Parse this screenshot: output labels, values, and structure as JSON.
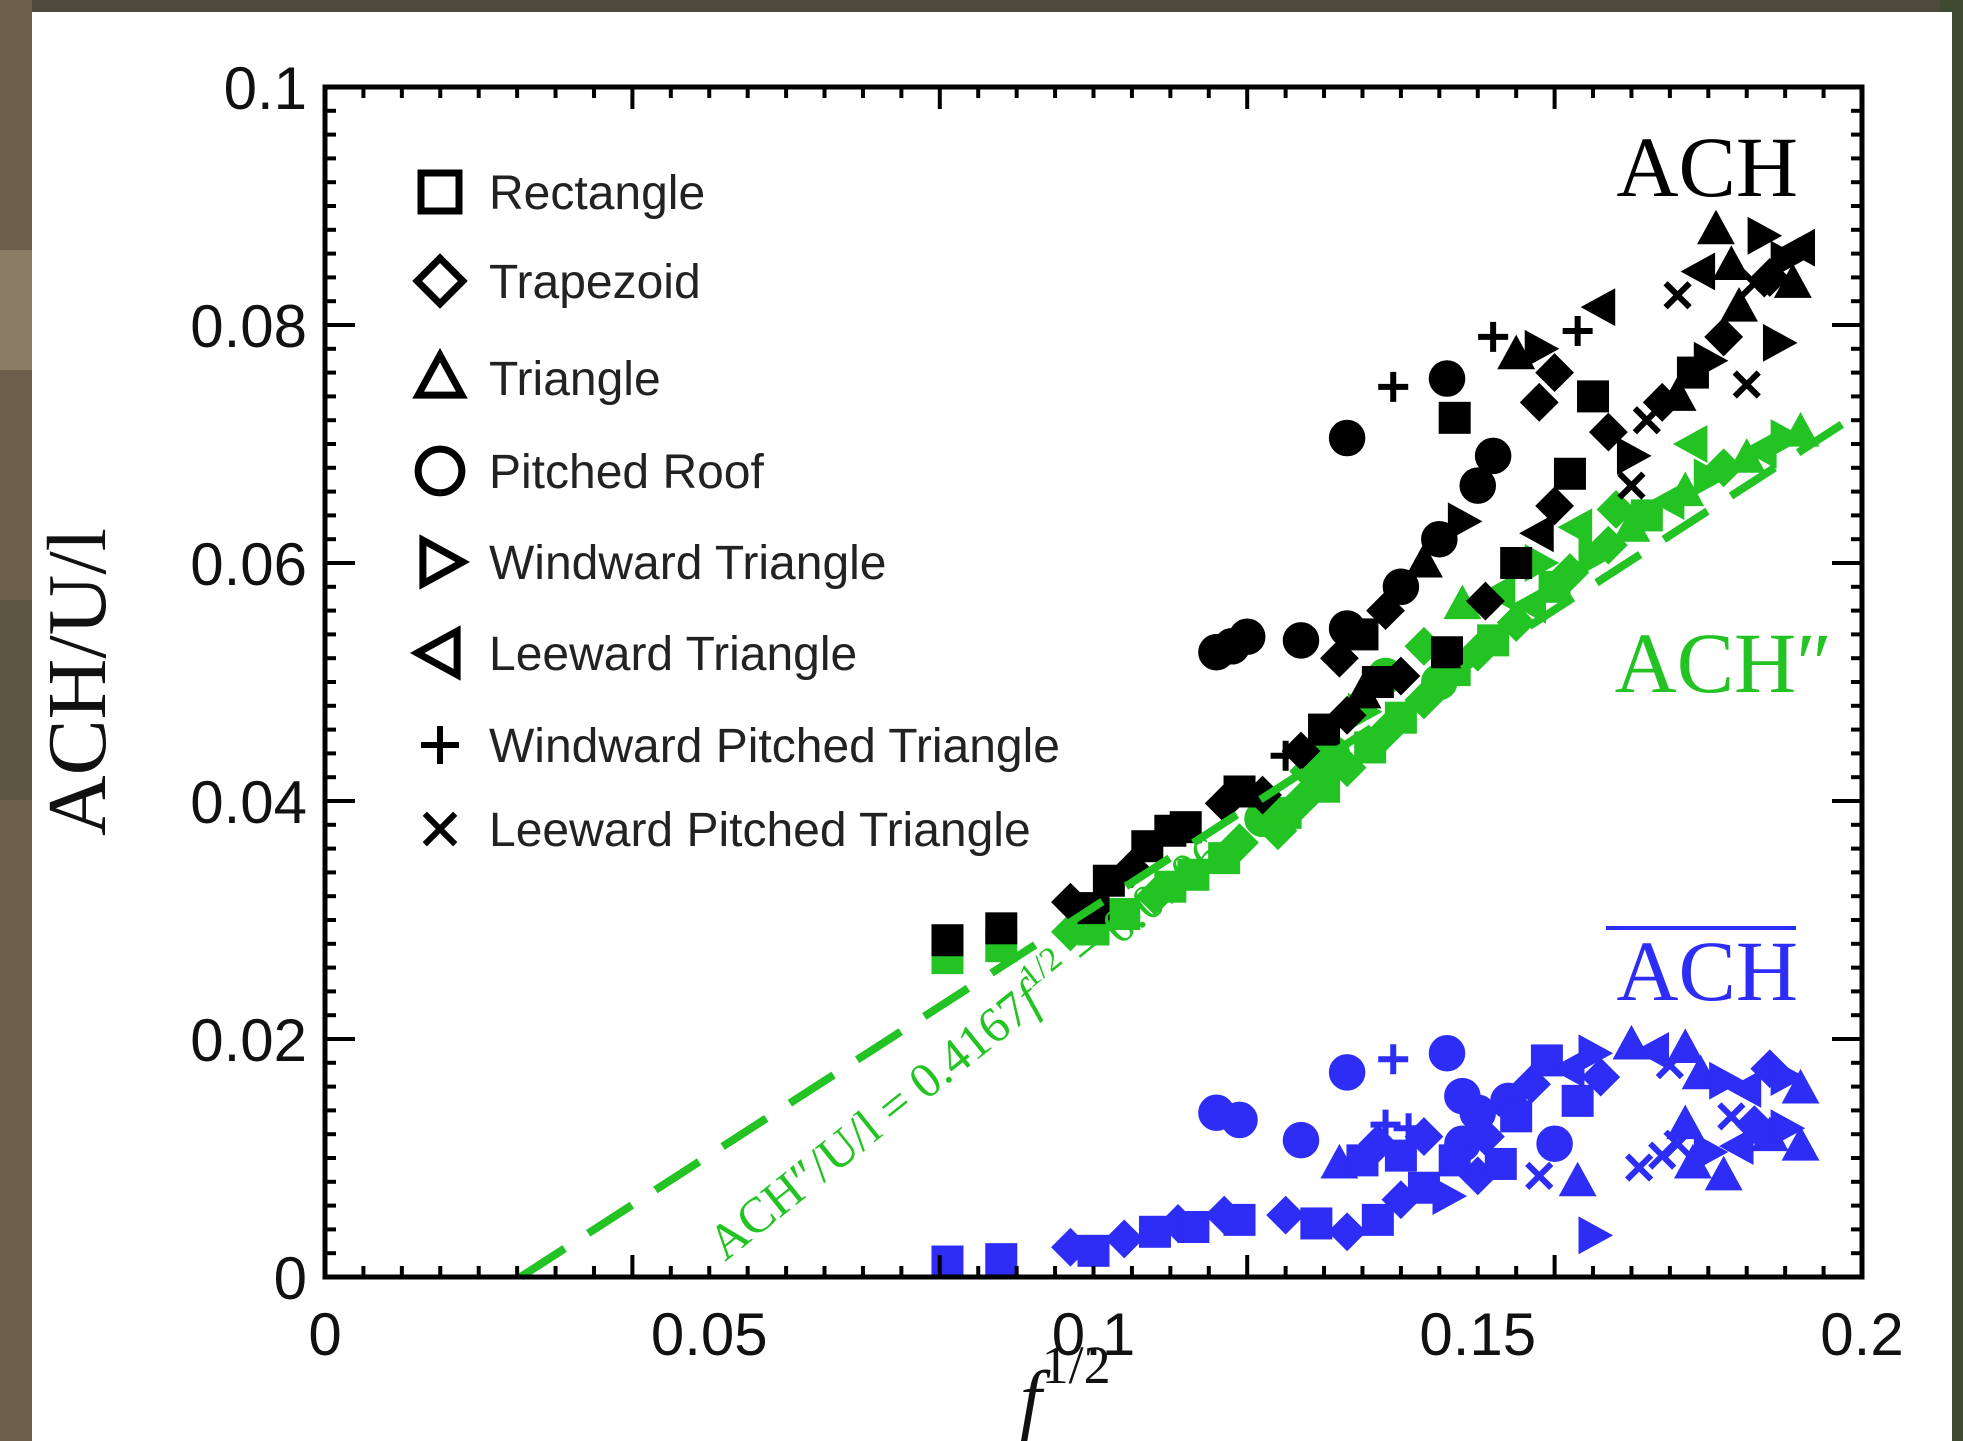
{
  "colors": {
    "ach": "#000000",
    "ach_pp": "#22c322",
    "ach_bar": "#2d2df5",
    "fit_line": "#22c322",
    "axis": "#000000"
  },
  "chart_data": {
    "type": "scatter",
    "xlabel_base": "f",
    "xlabel_exp": "1/2",
    "ylabel": "ACH/U/l",
    "xlim": [
      0,
      0.2
    ],
    "ylim": [
      0,
      0.1
    ],
    "x_ticks": [
      {
        "value": 0,
        "label": "0"
      },
      {
        "value": 0.05,
        "label": "0.05"
      },
      {
        "value": 0.1,
        "label": "0.1"
      },
      {
        "value": 0.15,
        "label": "0.15"
      },
      {
        "value": 0.2,
        "label": "0.2"
      }
    ],
    "y_ticks": [
      {
        "value": 0,
        "label": "0"
      },
      {
        "value": 0.02,
        "label": "0.02"
      },
      {
        "value": 0.04,
        "label": "0.04"
      },
      {
        "value": 0.06,
        "label": "0.06"
      },
      {
        "value": 0.08,
        "label": "0.08"
      },
      {
        "value": 0.1,
        "label": "0.1"
      }
    ],
    "grid": false,
    "legend_position": "top-left",
    "legend": [
      {
        "marker": "square",
        "label": "Rectangle"
      },
      {
        "marker": "diamond",
        "label": "Trapezoid"
      },
      {
        "marker": "triangle-up",
        "label": "Triangle"
      },
      {
        "marker": "circle",
        "label": "Pitched Roof"
      },
      {
        "marker": "triangle-right",
        "label": "Windward Triangle"
      },
      {
        "marker": "triangle-left",
        "label": "Leeward Triangle"
      },
      {
        "marker": "plus",
        "label": "Windward Pitched Triangle"
      },
      {
        "marker": "cross",
        "label": "Leeward Pitched Triangle"
      }
    ],
    "series_labels": {
      "ach": "ACH",
      "ach_pp": "ACH″",
      "ach_bar": "ACH"
    },
    "fit": {
      "slope": 0.4167,
      "intercept": -0.0106,
      "x_range": [
        0.0255,
        0.2
      ],
      "style": "dashed",
      "equation_lhs": "ACH″/U/l",
      "equation_rhs_a": " = 0.4167",
      "equation_rhs_b": "f",
      "equation_exp": "1/2",
      "equation_rhs_c": " − 0.0106"
    },
    "series": [
      {
        "key": "ach",
        "points": [
          [
            0.081,
            0.0283,
            "square"
          ],
          [
            0.088,
            0.0293,
            "square"
          ],
          [
            0.097,
            0.0315,
            "diamond"
          ],
          [
            0.1,
            0.031,
            "square"
          ],
          [
            0.102,
            0.0333,
            "square"
          ],
          [
            0.105,
            0.0343,
            "diamond"
          ],
          [
            0.107,
            0.0362,
            "square"
          ],
          [
            0.11,
            0.0375,
            "square"
          ],
          [
            0.112,
            0.0378,
            "square"
          ],
          [
            0.117,
            0.0398,
            "diamond"
          ],
          [
            0.119,
            0.0408,
            "square"
          ],
          [
            0.122,
            0.0405,
            "diamond"
          ],
          [
            0.125,
            0.0438,
            "plus"
          ],
          [
            0.127,
            0.0442,
            "diamond"
          ],
          [
            0.13,
            0.046,
            "square"
          ],
          [
            0.133,
            0.0472,
            "diamond"
          ],
          [
            0.135,
            0.049,
            "triangle-up"
          ],
          [
            0.137,
            0.05,
            "square"
          ],
          [
            0.132,
            0.052,
            "diamond"
          ],
          [
            0.135,
            0.054,
            "square"
          ],
          [
            0.138,
            0.056,
            "diamond"
          ],
          [
            0.14,
            0.058,
            "circle"
          ],
          [
            0.143,
            0.06,
            "triangle-up"
          ],
          [
            0.145,
            0.062,
            "circle"
          ],
          [
            0.148,
            0.0635,
            "triangle-right"
          ],
          [
            0.15,
            0.0665,
            "circle"
          ],
          [
            0.152,
            0.069,
            "circle"
          ],
          [
            0.146,
            0.0755,
            "circle"
          ],
          [
            0.147,
            0.0722,
            "square"
          ],
          [
            0.133,
            0.0705,
            "circle"
          ],
          [
            0.139,
            0.0748,
            "plus"
          ],
          [
            0.116,
            0.0525,
            "circle"
          ],
          [
            0.118,
            0.053,
            "circle"
          ],
          [
            0.12,
            0.0538,
            "circle"
          ],
          [
            0.127,
            0.0535,
            "circle"
          ],
          [
            0.133,
            0.0545,
            "circle"
          ],
          [
            0.14,
            0.0505,
            "diamond"
          ],
          [
            0.146,
            0.0525,
            "square"
          ],
          [
            0.151,
            0.0568,
            "diamond"
          ],
          [
            0.155,
            0.06,
            "square"
          ],
          [
            0.158,
            0.0625,
            "triangle-left"
          ],
          [
            0.16,
            0.0648,
            "diamond"
          ],
          [
            0.162,
            0.0675,
            "square"
          ],
          [
            0.158,
            0.0735,
            "diamond"
          ],
          [
            0.16,
            0.076,
            "diamond"
          ],
          [
            0.155,
            0.0775,
            "triangle-up"
          ],
          [
            0.158,
            0.078,
            "triangle-right"
          ],
          [
            0.152,
            0.079,
            "plus"
          ],
          [
            0.163,
            0.0795,
            "plus"
          ],
          [
            0.166,
            0.0815,
            "triangle-left"
          ],
          [
            0.165,
            0.074,
            "square"
          ],
          [
            0.167,
            0.071,
            "diamond"
          ],
          [
            0.17,
            0.069,
            "triangle-right"
          ],
          [
            0.172,
            0.072,
            "cross"
          ],
          [
            0.174,
            0.0735,
            "diamond"
          ],
          [
            0.176,
            0.074,
            "triangle-up"
          ],
          [
            0.178,
            0.076,
            "square"
          ],
          [
            0.18,
            0.077,
            "triangle-right"
          ],
          [
            0.182,
            0.079,
            "diamond"
          ],
          [
            0.184,
            0.0815,
            "triangle-up"
          ],
          [
            0.186,
            0.0835,
            "cross"
          ],
          [
            0.188,
            0.084,
            "diamond"
          ],
          [
            0.19,
            0.0855,
            "triangle-right"
          ],
          [
            0.192,
            0.0865,
            "triangle-left"
          ],
          [
            0.179,
            0.0845,
            "triangle-left"
          ],
          [
            0.183,
            0.085,
            "triangle-up"
          ],
          [
            0.187,
            0.0875,
            "triangle-right"
          ],
          [
            0.191,
            0.0835,
            "triangle-up"
          ],
          [
            0.189,
            0.0785,
            "triangle-right"
          ],
          [
            0.185,
            0.075,
            "cross"
          ],
          [
            0.176,
            0.0825,
            "cross"
          ],
          [
            0.181,
            0.088,
            "triangle-up"
          ],
          [
            0.17,
            0.0665,
            "cross"
          ]
        ]
      },
      {
        "key": "ach_pp",
        "points": [
          [
            0.081,
            0.0268,
            "square"
          ],
          [
            0.088,
            0.0278,
            "square"
          ],
          [
            0.097,
            0.029,
            "diamond"
          ],
          [
            0.1,
            0.0292,
            "square"
          ],
          [
            0.104,
            0.0305,
            "square"
          ],
          [
            0.108,
            0.032,
            "diamond"
          ],
          [
            0.11,
            0.0328,
            "square"
          ],
          [
            0.113,
            0.0338,
            "square"
          ],
          [
            0.117,
            0.0352,
            "square"
          ],
          [
            0.119,
            0.0365,
            "diamond"
          ],
          [
            0.122,
            0.0385,
            "circle"
          ],
          [
            0.125,
            0.039,
            "square"
          ],
          [
            0.127,
            0.04,
            "diamond"
          ],
          [
            0.13,
            0.0412,
            "square"
          ],
          [
            0.133,
            0.0428,
            "diamond"
          ],
          [
            0.136,
            0.0445,
            "square"
          ],
          [
            0.138,
            0.0458,
            "diamond"
          ],
          [
            0.14,
            0.047,
            "square"
          ],
          [
            0.143,
            0.0485,
            "diamond"
          ],
          [
            0.145,
            0.05,
            "circle"
          ],
          [
            0.147,
            0.051,
            "square"
          ],
          [
            0.15,
            0.0525,
            "diamond"
          ],
          [
            0.152,
            0.0535,
            "square"
          ],
          [
            0.155,
            0.055,
            "diamond"
          ],
          [
            0.157,
            0.0565,
            "triangle-left"
          ],
          [
            0.16,
            0.058,
            "square"
          ],
          [
            0.162,
            0.0592,
            "diamond"
          ],
          [
            0.165,
            0.0605,
            "triangle-right"
          ],
          [
            0.167,
            0.0615,
            "diamond"
          ],
          [
            0.17,
            0.063,
            "triangle-up"
          ],
          [
            0.172,
            0.064,
            "square"
          ],
          [
            0.175,
            0.0652,
            "triangle-left"
          ],
          [
            0.177,
            0.066,
            "triangle-up"
          ],
          [
            0.18,
            0.0672,
            "triangle-right"
          ],
          [
            0.182,
            0.068,
            "diamond"
          ],
          [
            0.185,
            0.0688,
            "triangle-up"
          ],
          [
            0.187,
            0.0695,
            "triangle-left"
          ],
          [
            0.19,
            0.0705,
            "triangle-right"
          ],
          [
            0.192,
            0.071,
            "triangle-up"
          ],
          [
            0.148,
            0.0565,
            "triangle-up"
          ],
          [
            0.153,
            0.0575,
            "triangle-left"
          ],
          [
            0.158,
            0.06,
            "triangle-right"
          ],
          [
            0.163,
            0.063,
            "triangle-left"
          ],
          [
            0.168,
            0.0645,
            "diamond"
          ],
          [
            0.178,
            0.07,
            "triangle-left"
          ],
          [
            0.143,
            0.053,
            "diamond"
          ],
          [
            0.138,
            0.0505,
            "circle"
          ],
          [
            0.135,
            0.0475,
            "triangle-right"
          ],
          [
            0.131,
            0.044,
            "circle"
          ],
          [
            0.128,
            0.0425,
            "diamond"
          ],
          [
            0.124,
            0.0375,
            "diamond"
          ]
        ]
      },
      {
        "key": "ach_bar",
        "points": [
          [
            0.081,
            0.0013,
            "square"
          ],
          [
            0.088,
            0.0015,
            "square"
          ],
          [
            0.097,
            0.0025,
            "diamond"
          ],
          [
            0.1,
            0.0022,
            "square"
          ],
          [
            0.104,
            0.0032,
            "diamond"
          ],
          [
            0.108,
            0.0038,
            "square"
          ],
          [
            0.111,
            0.0045,
            "diamond"
          ],
          [
            0.113,
            0.0042,
            "square"
          ],
          [
            0.117,
            0.0052,
            "diamond"
          ],
          [
            0.119,
            0.0048,
            "square"
          ],
          [
            0.125,
            0.0052,
            "diamond"
          ],
          [
            0.129,
            0.0045,
            "square"
          ],
          [
            0.133,
            0.0038,
            "diamond"
          ],
          [
            0.137,
            0.0048,
            "square"
          ],
          [
            0.14,
            0.0065,
            "diamond"
          ],
          [
            0.143,
            0.0075,
            "square"
          ],
          [
            0.146,
            0.0068,
            "triangle-right"
          ],
          [
            0.15,
            0.0085,
            "diamond"
          ],
          [
            0.153,
            0.0095,
            "square"
          ],
          [
            0.148,
            0.0112,
            "circle"
          ],
          [
            0.15,
            0.0138,
            "circle"
          ],
          [
            0.154,
            0.0148,
            "circle"
          ],
          [
            0.146,
            0.0188,
            "circle"
          ],
          [
            0.148,
            0.0152,
            "circle"
          ],
          [
            0.141,
            0.0125,
            "plus"
          ],
          [
            0.138,
            0.0128,
            "plus"
          ],
          [
            0.133,
            0.0172,
            "circle"
          ],
          [
            0.139,
            0.0183,
            "plus"
          ],
          [
            0.116,
            0.0138,
            "circle"
          ],
          [
            0.119,
            0.0132,
            "circle"
          ],
          [
            0.127,
            0.0115,
            "circle"
          ],
          [
            0.132,
            0.0095,
            "triangle-up"
          ],
          [
            0.135,
            0.0098,
            "square"
          ],
          [
            0.137,
            0.0112,
            "diamond"
          ],
          [
            0.14,
            0.0102,
            "square"
          ],
          [
            0.143,
            0.0118,
            "diamond"
          ],
          [
            0.147,
            0.0098,
            "square"
          ],
          [
            0.151,
            0.0118,
            "diamond"
          ],
          [
            0.155,
            0.0135,
            "square"
          ],
          [
            0.157,
            0.0162,
            "diamond"
          ],
          [
            0.159,
            0.0182,
            "square"
          ],
          [
            0.162,
            0.0175,
            "triangle-left"
          ],
          [
            0.16,
            0.0112,
            "circle"
          ],
          [
            0.158,
            0.0085,
            "cross"
          ],
          [
            0.163,
            0.008,
            "triangle-up"
          ],
          [
            0.165,
            0.0035,
            "triangle-right"
          ],
          [
            0.163,
            0.0148,
            "square"
          ],
          [
            0.166,
            0.0168,
            "diamond"
          ],
          [
            0.165,
            0.0188,
            "triangle-right"
          ],
          [
            0.17,
            0.0195,
            "triangle-up"
          ],
          [
            0.173,
            0.019,
            "triangle-left"
          ],
          [
            0.175,
            0.0178,
            "cross"
          ],
          [
            0.177,
            0.0192,
            "triangle-up"
          ],
          [
            0.179,
            0.017,
            "triangle-up"
          ],
          [
            0.182,
            0.0165,
            "triangle-right"
          ],
          [
            0.185,
            0.0158,
            "triangle-left"
          ],
          [
            0.188,
            0.0175,
            "diamond"
          ],
          [
            0.19,
            0.0168,
            "triangle-right"
          ],
          [
            0.192,
            0.0158,
            "triangle-up"
          ],
          [
            0.171,
            0.0092,
            "cross"
          ],
          [
            0.174,
            0.0102,
            "cross"
          ],
          [
            0.176,
            0.0112,
            "cross"
          ],
          [
            0.178,
            0.0095,
            "triangle-up"
          ],
          [
            0.18,
            0.0105,
            "triangle-right"
          ],
          [
            0.182,
            0.0085,
            "triangle-up"
          ],
          [
            0.184,
            0.011,
            "triangle-left"
          ],
          [
            0.186,
            0.0128,
            "diamond"
          ],
          [
            0.188,
            0.0118,
            "triangle-up"
          ],
          [
            0.19,
            0.0125,
            "triangle-right"
          ],
          [
            0.192,
            0.011,
            "triangle-up"
          ],
          [
            0.183,
            0.0135,
            "cross"
          ],
          [
            0.177,
            0.0128,
            "triangle-up"
          ]
        ]
      }
    ]
  }
}
